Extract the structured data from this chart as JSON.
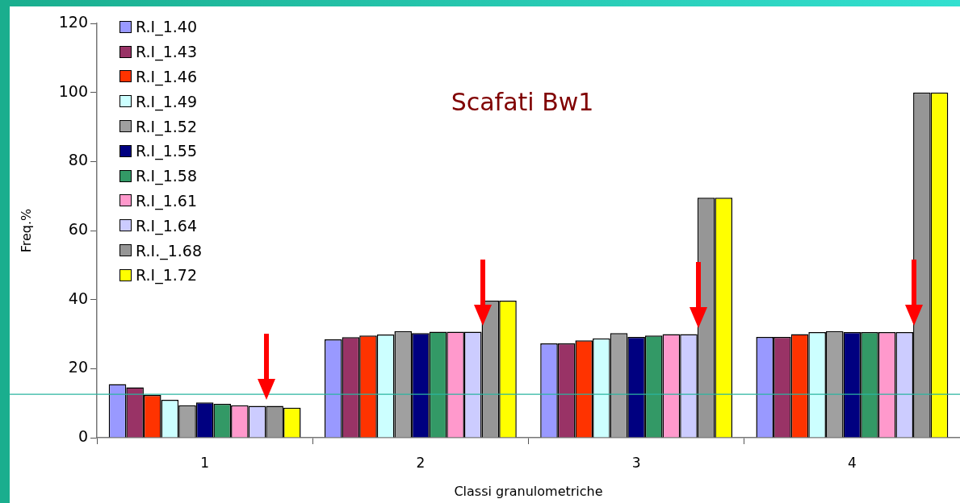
{
  "chart_data": {
    "type": "bar",
    "title": "Scafati Bw1",
    "xlabel": "Classi granulometriche",
    "ylabel": "Freq.%",
    "categories": [
      "1",
      "2",
      "3",
      "4"
    ],
    "series": [
      {
        "name": "R.I_1.40",
        "color": "#9999ff",
        "values": [
          15.5,
          28.5,
          27.3,
          29.2
        ]
      },
      {
        "name": "R.I_1.43",
        "color": "#993366",
        "values": [
          14.6,
          29.1,
          27.3,
          29.2
        ]
      },
      {
        "name": "R.I_1.46",
        "color": "#ff3300",
        "values": [
          12.4,
          29.6,
          28.2,
          30.0
        ]
      },
      {
        "name": "R.I_1.49",
        "color": "#ccffff",
        "values": [
          11.0,
          29.9,
          28.8,
          30.6
        ]
      },
      {
        "name": "R.I_1.52",
        "color": "#a0a0a0",
        "values": [
          9.4,
          30.9,
          30.3,
          30.9
        ]
      },
      {
        "name": "R.I_1.55",
        "color": "#000080",
        "values": [
          10.2,
          30.3,
          29.2,
          30.6
        ]
      },
      {
        "name": "R.I_1.58",
        "color": "#339966",
        "values": [
          9.8,
          30.7,
          29.6,
          30.6
        ]
      },
      {
        "name": "R.I_1.61",
        "color": "#ff99cc",
        "values": [
          9.4,
          30.7,
          30.0,
          30.6
        ]
      },
      {
        "name": "R.I_1.64",
        "color": "#ccccff",
        "values": [
          9.2,
          30.7,
          30.0,
          30.6
        ]
      },
      {
        "name": "R.I._1.68",
        "color": "#969696",
        "values": [
          9.2,
          39.7,
          69.5,
          100
        ]
      },
      {
        "name": "R.I_1.72",
        "color": "#ffff00",
        "values": [
          8.7,
          39.7,
          69.5,
          100
        ]
      }
    ],
    "ylim": [
      0,
      120
    ],
    "yticks": [
      0,
      20,
      40,
      60,
      80,
      100,
      120
    ],
    "grid": false,
    "legend": "top left",
    "ref_lines": [
      {
        "axis": "y",
        "value": 12.6,
        "color": "#2bb5a0"
      }
    ]
  }
}
